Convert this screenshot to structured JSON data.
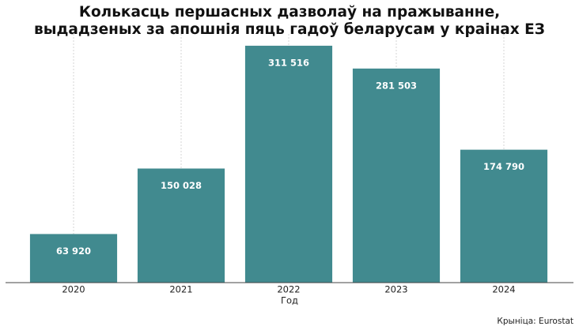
{
  "chart_data": {
    "type": "bar",
    "title": [
      "Колькасць першасных дазволаў на пражыванне,",
      "выдадзеных за апошнія пяць гадоў беларусам у краінах ЕЗ"
    ],
    "categories": [
      "2020",
      "2021",
      "2022",
      "2023",
      "2024"
    ],
    "values": [
      63920,
      150028,
      311516,
      281503,
      174790
    ],
    "value_labels": [
      "63 920",
      "150 028",
      "311 516",
      "281 503",
      "174 790"
    ],
    "color": "#418a8f",
    "ylim": [
      0,
      327000
    ],
    "x_label": "Год",
    "source": "Крыніца: Eurostat",
    "grid": true
  }
}
